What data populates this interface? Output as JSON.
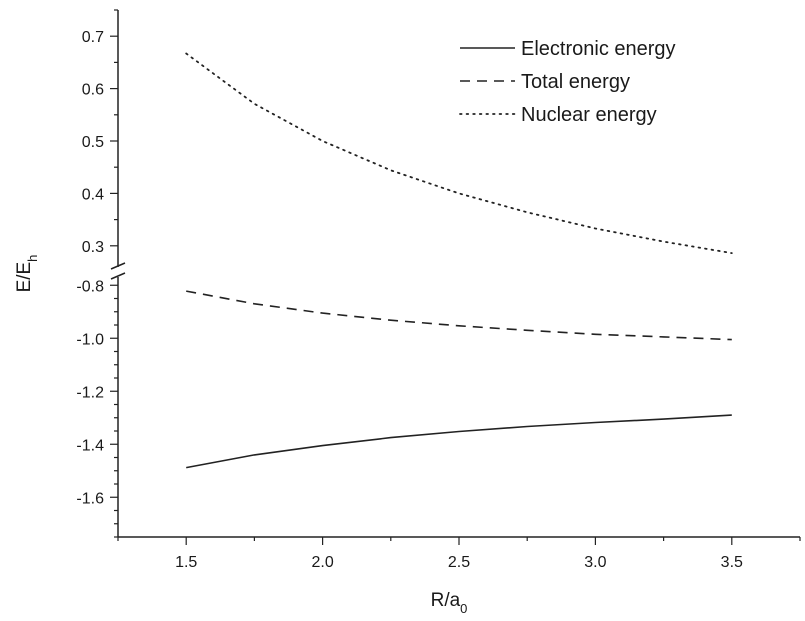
{
  "chart_data": {
    "type": "line",
    "title": "",
    "xlabel": {
      "main": "R/a",
      "sub": "0"
    },
    "ylabel": {
      "main": "E/E",
      "sub": "h"
    },
    "xlim": [
      1.25,
      3.75
    ],
    "x_ticks": [
      "1.5",
      "2.0",
      "2.5",
      "3.0",
      "3.5"
    ],
    "y_axis_broken": true,
    "ylim_upper": [
      0.25,
      0.75
    ],
    "ylim_lower": [
      -1.75,
      -0.75
    ],
    "y_ticks_upper": [
      "0.3",
      "0.4",
      "0.5",
      "0.6",
      "0.7"
    ],
    "y_ticks_lower": [
      "-1.6",
      "-1.4",
      "-1.2",
      "-1.0",
      "-0.8"
    ],
    "legend_position": "top-right",
    "grid": false,
    "series": [
      {
        "name": "Electronic energy",
        "style": "solid",
        "x": [
          1.5,
          1.75,
          2.0,
          2.25,
          2.5,
          2.75,
          3.0,
          3.25,
          3.5
        ],
        "y": [
          -1.488,
          -1.44,
          -1.405,
          -1.375,
          -1.352,
          -1.333,
          -1.318,
          -1.305,
          -1.29
        ]
      },
      {
        "name": "Total energy",
        "style": "dashed",
        "x": [
          1.5,
          1.75,
          2.0,
          2.25,
          2.5,
          2.75,
          3.0,
          3.25,
          3.5
        ],
        "y": [
          -0.822,
          -0.87,
          -0.905,
          -0.932,
          -0.953,
          -0.97,
          -0.985,
          -0.995,
          -1.005
        ]
      },
      {
        "name": "Nuclear energy",
        "style": "dotted",
        "x": [
          1.5,
          1.75,
          2.0,
          2.25,
          2.5,
          2.75,
          3.0,
          3.25,
          3.5
        ],
        "y": [
          0.667,
          0.571,
          0.5,
          0.444,
          0.4,
          0.364,
          0.333,
          0.308,
          0.286
        ]
      }
    ]
  }
}
